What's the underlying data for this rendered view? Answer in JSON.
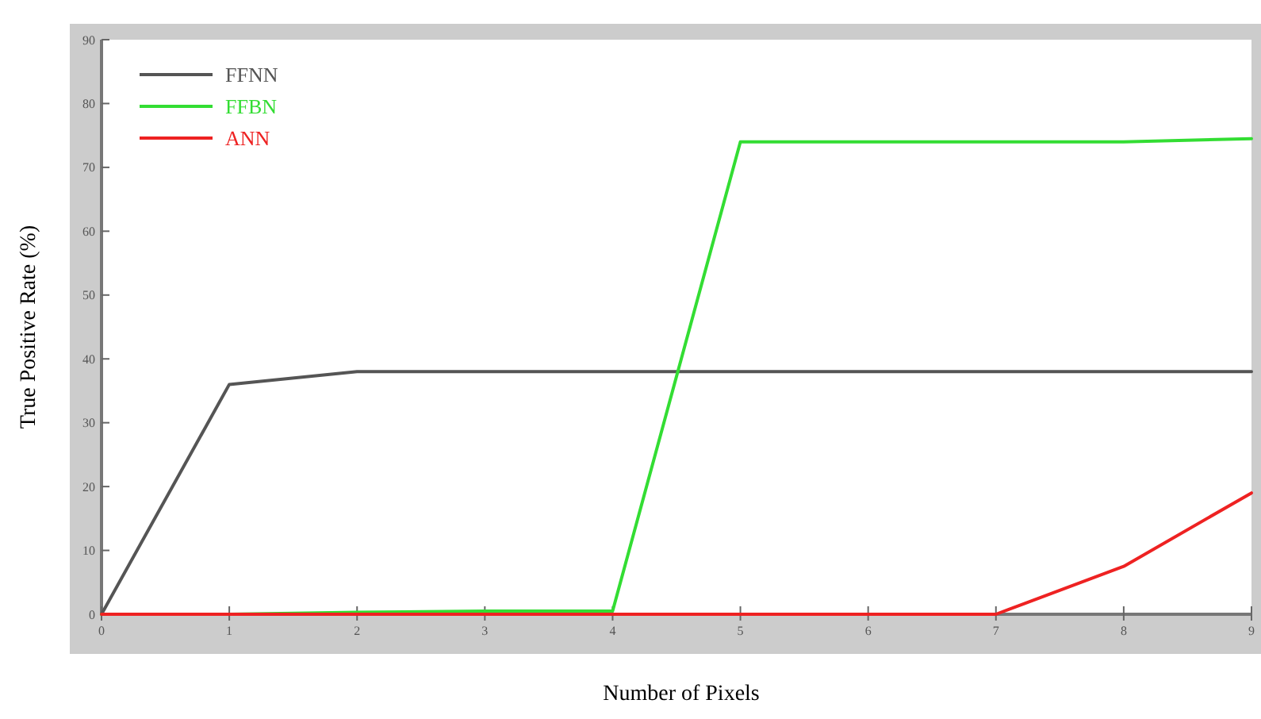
{
  "chart_data": {
    "type": "line",
    "xlabel": "Number of Pixels",
    "ylabel": "True Positive Rate (%)",
    "x": [
      0,
      1,
      2,
      3,
      4,
      5,
      6,
      7,
      8,
      9
    ],
    "xlim": [
      0,
      9
    ],
    "ylim": [
      0,
      90
    ],
    "xticks": [
      0,
      1,
      2,
      3,
      4,
      5,
      6,
      7,
      8,
      9
    ],
    "yticks": [
      0,
      10,
      20,
      30,
      40,
      50,
      60,
      70,
      80,
      90
    ],
    "series": [
      {
        "name": "FFNN",
        "color": "#555555",
        "values": [
          0,
          36,
          38,
          38,
          38,
          38,
          38,
          38,
          38,
          38
        ]
      },
      {
        "name": "FFBN",
        "color": "#33dd33",
        "values": [
          0,
          0,
          0.3,
          0.5,
          0.5,
          74,
          74,
          74,
          74,
          74.5
        ]
      },
      {
        "name": "ANN",
        "color": "#ee2222",
        "values": [
          0,
          0,
          0,
          0,
          0,
          0,
          0,
          0,
          7.5,
          19
        ]
      }
    ],
    "legend": "top left",
    "grid": false,
    "marker": "none",
    "line_style": "solid"
  }
}
